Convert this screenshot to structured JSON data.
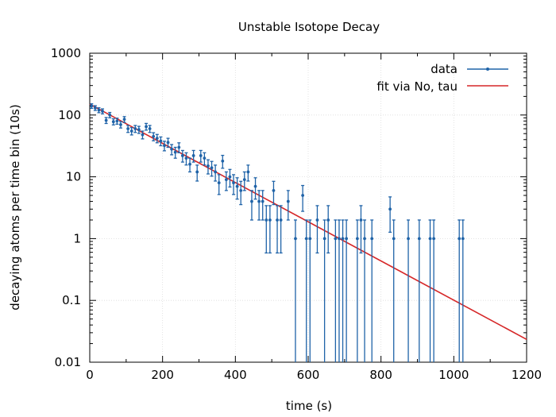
{
  "chart_data": {
    "type": "scatter",
    "title": "Unstable Isotope Decay",
    "xlabel": "time (s)",
    "ylabel": "decaying atoms per time bin (10s)",
    "xlim": [
      0,
      1200
    ],
    "ylim": [
      0.01,
      1000
    ],
    "yscale": "log",
    "grid": true,
    "legend_position": "top-right",
    "x_ticks": [
      "0",
      "200",
      "400",
      "600",
      "800",
      "1000",
      "1200"
    ],
    "x_tick_values": [
      0,
      200,
      400,
      600,
      800,
      1000,
      1200
    ],
    "y_ticks": [
      "1000",
      "100",
      "10",
      "1",
      "0.1",
      "0.01"
    ],
    "y_tick_values": [
      1000,
      100,
      10,
      1,
      0.1,
      0.01
    ],
    "series": [
      {
        "name": "data",
        "kind": "points-with-errorbars",
        "color": "#1f63a8",
        "points": [
          [
            5,
            140
          ],
          [
            15,
            130
          ],
          [
            25,
            120
          ],
          [
            35,
            115
          ],
          [
            45,
            82
          ],
          [
            55,
            100
          ],
          [
            65,
            78
          ],
          [
            75,
            80
          ],
          [
            85,
            70
          ],
          [
            95,
            85
          ],
          [
            105,
            60
          ],
          [
            115,
            55
          ],
          [
            125,
            60
          ],
          [
            135,
            58
          ],
          [
            145,
            48
          ],
          [
            155,
            65
          ],
          [
            165,
            60
          ],
          [
            175,
            45
          ],
          [
            185,
            42
          ],
          [
            195,
            38
          ],
          [
            205,
            32
          ],
          [
            215,
            36
          ],
          [
            225,
            28
          ],
          [
            235,
            25
          ],
          [
            245,
            30
          ],
          [
            255,
            22
          ],
          [
            265,
            20
          ],
          [
            275,
            16
          ],
          [
            285,
            22
          ],
          [
            295,
            12
          ],
          [
            305,
            22
          ],
          [
            315,
            20
          ],
          [
            325,
            15
          ],
          [
            335,
            14
          ],
          [
            345,
            12
          ],
          [
            355,
            8
          ],
          [
            365,
            18
          ],
          [
            375,
            9
          ],
          [
            385,
            10
          ],
          [
            395,
            8
          ],
          [
            405,
            7
          ],
          [
            415,
            6
          ],
          [
            425,
            9
          ],
          [
            435,
            12
          ],
          [
            445,
            4
          ],
          [
            455,
            7
          ],
          [
            465,
            4
          ],
          [
            475,
            4
          ],
          [
            485,
            2
          ],
          [
            495,
            2
          ],
          [
            505,
            6
          ],
          [
            515,
            2
          ],
          [
            525,
            2
          ],
          [
            545,
            4
          ],
          [
            565,
            1
          ],
          [
            585,
            5
          ],
          [
            595,
            1
          ],
          [
            605,
            1
          ],
          [
            625,
            2
          ],
          [
            645,
            1
          ],
          [
            655,
            2
          ],
          [
            675,
            1
          ],
          [
            685,
            1
          ],
          [
            695,
            1
          ],
          [
            705,
            1
          ],
          [
            735,
            1
          ],
          [
            745,
            2
          ],
          [
            755,
            1
          ],
          [
            775,
            1
          ],
          [
            825,
            3
          ],
          [
            835,
            1
          ],
          [
            875,
            1
          ],
          [
            905,
            1
          ],
          [
            935,
            1
          ],
          [
            945,
            1
          ],
          [
            1015,
            1
          ],
          [
            1025,
            1
          ]
        ]
      },
      {
        "name": "fit via No, tau",
        "kind": "line",
        "color": "#d62728",
        "x": [
          0,
          1200
        ],
        "y": [
          150,
          0.0234
        ]
      }
    ]
  }
}
